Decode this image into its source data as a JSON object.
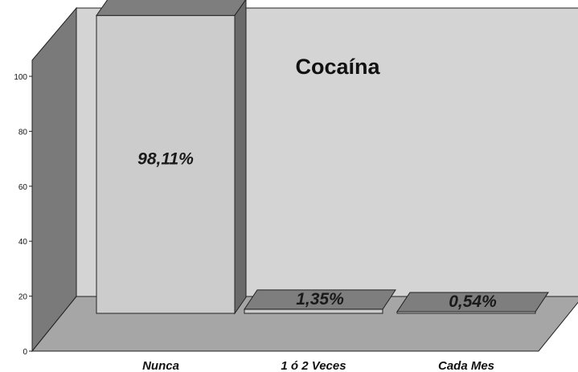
{
  "chart_data": {
    "type": "bar",
    "title": "Cocaína",
    "categories": [
      "Nunca",
      "1 ó 2 Veces",
      "Cada Mes"
    ],
    "values": [
      98.11,
      1.35,
      0.54
    ],
    "data_labels": [
      "98,11%",
      "1,35%",
      "0,54%"
    ],
    "xlabel": "",
    "ylabel": "",
    "ylim": [
      0,
      100
    ],
    "yticks": [
      0,
      20,
      40,
      60,
      80,
      100
    ],
    "grid": false,
    "legend": "none",
    "three_d": true,
    "colors": {
      "back_wall": "#d4d4d4",
      "side_wall": "#7a7a7a",
      "floor": "#a6a6a6",
      "bar_front": "#cccccc",
      "bar_top": "#7e7e7e",
      "bar_side": "#6a6a6a",
      "outline": "#222222"
    }
  }
}
